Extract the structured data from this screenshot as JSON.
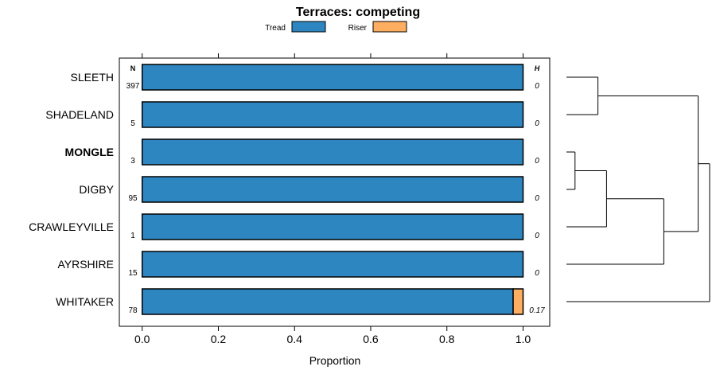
{
  "chart_data": {
    "type": "bar",
    "orientation": "horizontal",
    "stacked": true,
    "title": "Terraces: competing",
    "xlabel": "Proportion",
    "xlim": [
      -0.06,
      1.07
    ],
    "x_ticks": [
      "0.0",
      "0.2",
      "0.4",
      "0.6",
      "0.8",
      "1.0"
    ],
    "x_tick_values": [
      0,
      0.2,
      0.4,
      0.6,
      0.8,
      1.0
    ],
    "legend": {
      "placement": "top"
    },
    "series": [
      {
        "name": "Tread",
        "color": "#2e86c1"
      },
      {
        "name": "Riser",
        "color": "#fdae61"
      }
    ],
    "n_header": "N",
    "h_header": "H",
    "categories": [
      "SLEETH",
      "SHADELAND",
      "MONGLE",
      "DIGBY",
      "CRAWLEYVILLE",
      "AYRSHIRE",
      "WHITAKER"
    ],
    "highlighted": "MONGLE",
    "rows": [
      {
        "label": "SLEETH",
        "n": "397",
        "h": "0",
        "tread": 1.0,
        "riser": 0.0
      },
      {
        "label": "SHADELAND",
        "n": "5",
        "h": "0",
        "tread": 1.0,
        "riser": 0.0
      },
      {
        "label": "MONGLE",
        "n": "3",
        "h": "0",
        "tread": 1.0,
        "riser": 0.0
      },
      {
        "label": "DIGBY",
        "n": "95",
        "h": "0",
        "tread": 1.0,
        "riser": 0.0
      },
      {
        "label": "CRAWLEYVILLE",
        "n": "1",
        "h": "0",
        "tread": 1.0,
        "riser": 0.0
      },
      {
        "label": "AYRSHIRE",
        "n": "15",
        "h": "0",
        "tread": 1.0,
        "riser": 0.0
      },
      {
        "label": "WHITAKER",
        "n": "78",
        "h": "0.17",
        "tread": 0.974,
        "riser": 0.026
      }
    ],
    "dendrogram": {
      "merges": [
        {
          "a": 2,
          "b": 3,
          "height": 0.06
        },
        {
          "a": "m0",
          "b": 4,
          "height": 0.28
        },
        {
          "a": 0,
          "b": 1,
          "height": 0.22
        },
        {
          "a": "m1",
          "b": 5,
          "height": 0.68
        },
        {
          "a": "m2",
          "b": "m3",
          "height": 0.92
        },
        {
          "a": "m4",
          "b": 6,
          "height": 1.0
        }
      ]
    }
  }
}
